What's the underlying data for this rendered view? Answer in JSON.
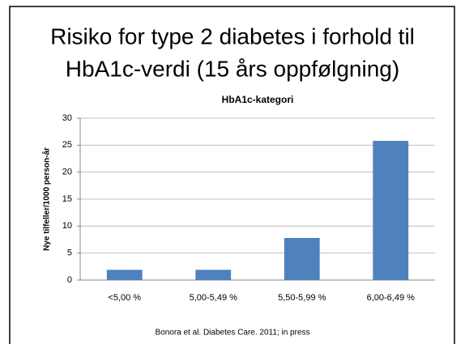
{
  "slide": {
    "heading": [
      "Risiko for type 2 diabetes i forhold til",
      "HbA1c-verdi (15 års oppfølgning)"
    ],
    "source": "Bonora et al. Diabetes Care. 2011; in press"
  },
  "chart_data": {
    "type": "bar",
    "title": "HbA1c-kategori",
    "y_label": "Nye tilfeller/1000 person-år",
    "categories": [
      "<5,00 %",
      "5,00-5,49 %",
      "5,50-5,99 %",
      "6,00-6,49 %"
    ],
    "values": [
      1.9,
      1.9,
      7.8,
      25.8
    ],
    "color": "#4f81bd",
    "ylim": [
      0,
      30
    ],
    "yticks": [
      0,
      5,
      10,
      15,
      20,
      25,
      30
    ],
    "grid": true
  }
}
